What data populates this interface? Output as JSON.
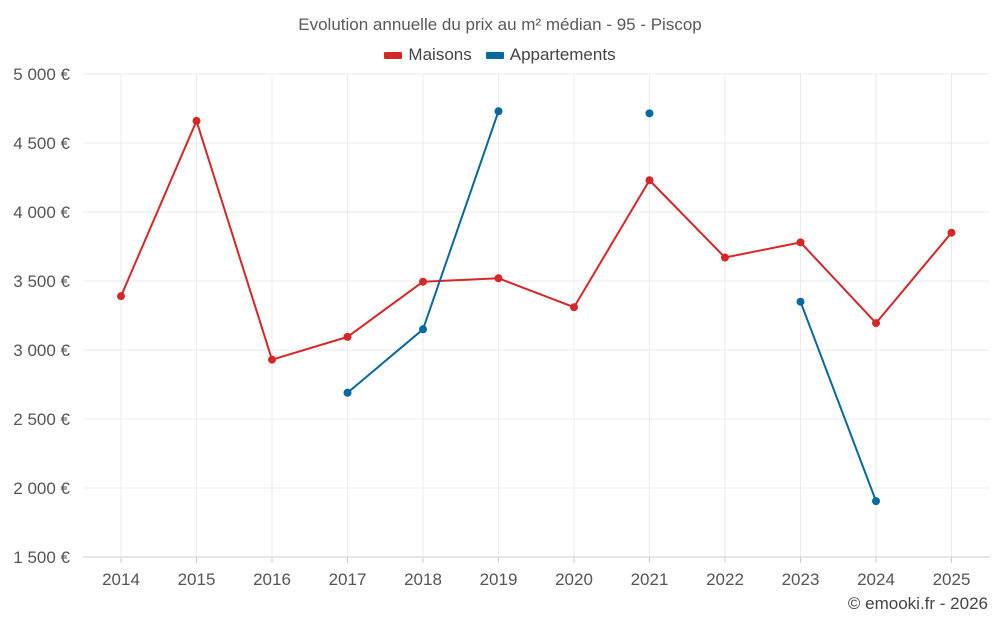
{
  "chart_data": {
    "type": "line",
    "title": "Evolution annuelle du prix au m² médian - 95 - Piscop",
    "categories": [
      "2014",
      "2015",
      "2016",
      "2017",
      "2018",
      "2019",
      "2020",
      "2021",
      "2022",
      "2023",
      "2024",
      "2025"
    ],
    "ylim": [
      1500,
      5000
    ],
    "yticks": [
      1500,
      2000,
      2500,
      3000,
      3500,
      4000,
      4500,
      5000
    ],
    "ytick_labels": [
      "1 500 €",
      "2 000 €",
      "2 500 €",
      "3 000 €",
      "3 500 €",
      "4 000 €",
      "4 500 €",
      "5 000 €"
    ],
    "grid": true,
    "legend_position": "top-center",
    "series": [
      {
        "name": "Maisons",
        "color": "#d62728",
        "values": [
          3390,
          4660,
          2930,
          3095,
          3495,
          3520,
          3310,
          4230,
          3670,
          3780,
          3195,
          3850
        ]
      },
      {
        "name": "Appartements",
        "color": "#04699c",
        "values": [
          null,
          null,
          null,
          2690,
          3150,
          4730,
          null,
          4715,
          null,
          3350,
          1905,
          null
        ]
      }
    ]
  },
  "credit": "© emooki.fr - 2026"
}
